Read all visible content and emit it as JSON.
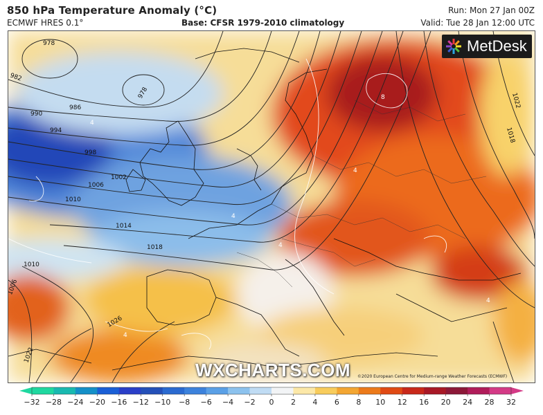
{
  "header": {
    "title": "850 hPa Temperature Anomaly (°C)",
    "model": "ECMWF HRES 0.1°",
    "base": "Base: CFSR 1979-2010 climatology",
    "run": "Run: Mon 27 Jan 00Z",
    "valid": "Valid: Tue 28 Jan 12:00 UTC"
  },
  "logo": {
    "text": "MetDesk"
  },
  "watermark": {
    "text": "WXCHARTS.COM"
  },
  "copyright": "©2020 European Centre for Medium-range Weather Forecasts (ECMWF)",
  "map": {
    "isobar_labels": [
      "978",
      "982",
      "978",
      "986",
      "990",
      "994",
      "998",
      "1002",
      "1006",
      "1010",
      "1014",
      "1018",
      "1010",
      "1006",
      "1026",
      "1022",
      "1018",
      "1022"
    ],
    "anomaly_labels": [
      "4",
      "4",
      "4",
      "8",
      "4",
      "4",
      "4"
    ]
  },
  "colorbar": {
    "ticks": [
      "−32",
      "−28",
      "−24",
      "−20",
      "−16",
      "−12",
      "−10",
      "−8",
      "−6",
      "−4",
      "−2",
      "0",
      "2",
      "4",
      "6",
      "8",
      "10",
      "12",
      "16",
      "20",
      "24",
      "28",
      "32"
    ],
    "colors": [
      "#1fd8a0",
      "#19b9b0",
      "#1490c8",
      "#1a5fd6",
      "#2a3fc8",
      "#2450b8",
      "#2a6ad0",
      "#3c82dc",
      "#5aa0e6",
      "#8cc2ee",
      "#c0dcf4",
      "#f2f4f6",
      "#fce8a8",
      "#f8cc5c",
      "#f3a632",
      "#ec7a1a",
      "#e04a14",
      "#c8281a",
      "#a81826",
      "#8c1838",
      "#b01c5a",
      "#d43a86"
    ]
  }
}
